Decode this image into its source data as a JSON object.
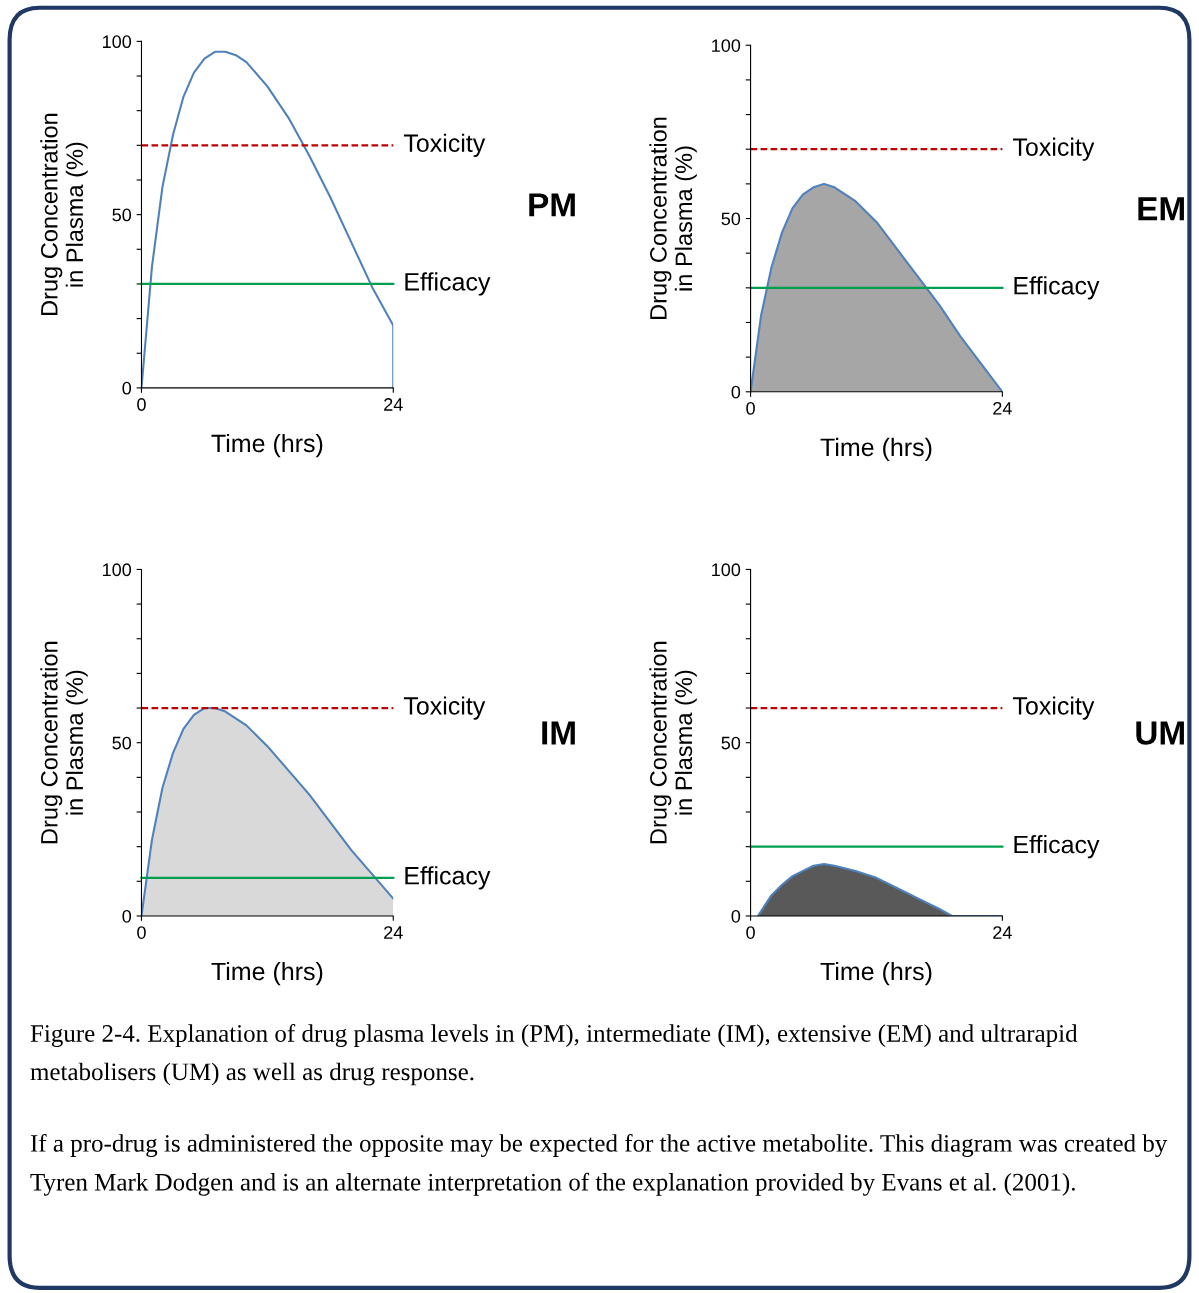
{
  "chart_data": [
    {
      "type": "line",
      "xlabel": "Time (hrs)",
      "ylabel": "Drug Concentration\nin Plasma (%)",
      "xlim": [
        0,
        24
      ],
      "ylim": [
        0,
        100
      ],
      "xticks": [
        0,
        24
      ],
      "yticks": [
        0,
        {
          "value": 10,
          "label": null
        },
        {
          "value": 20,
          "label": null
        },
        {
          "value": 30,
          "label": null
        },
        {
          "value": 40,
          "label": null
        },
        50,
        {
          "value": 60,
          "label": null
        },
        {
          "value": 70,
          "label": null
        },
        {
          "value": 80,
          "label": null
        },
        {
          "value": 90,
          "label": null
        },
        100
      ],
      "series": [
        {
          "color": "#4f81bd",
          "x": [
            0,
            1,
            2,
            3,
            4,
            5,
            6,
            7,
            8,
            9,
            10,
            12,
            14,
            16,
            18,
            20,
            22,
            24,
            24
          ],
          "values": [
            0,
            35,
            58,
            73,
            84,
            91,
            95,
            97,
            97,
            96,
            94,
            87,
            78,
            67,
            55,
            42,
            29,
            18,
            0
          ]
        }
      ],
      "ref_lines": [
        {
          "axis": "y",
          "value": 70,
          "label": "Toxicity",
          "color": "#c00000",
          "line_style": "dashed"
        },
        {
          "axis": "y",
          "value": 30,
          "label": "Efficacy",
          "color": "#00a050",
          "line_style": "solid"
        }
      ],
      "annotations": [
        "PM"
      ]
    },
    {
      "type": "area",
      "xlabel": "Time (hrs)",
      "ylabel": "Drug Concentration\nin Plasma (%)",
      "xlim": [
        0,
        24
      ],
      "ylim": [
        0,
        100
      ],
      "xticks": [
        0,
        24
      ],
      "yticks": [
        0,
        {
          "value": 10,
          "label": null
        },
        {
          "value": 20,
          "label": null
        },
        {
          "value": 30,
          "label": null
        },
        {
          "value": 40,
          "label": null
        },
        50,
        {
          "value": 60,
          "label": null
        },
        {
          "value": 70,
          "label": null
        },
        {
          "value": 80,
          "label": null
        },
        {
          "value": 90,
          "label": null
        },
        100
      ],
      "series": [
        {
          "color": "#a6a6a6",
          "x": [
            0,
            1,
            2,
            3,
            4,
            5,
            6,
            7,
            8,
            10,
            12,
            14,
            16,
            18,
            20,
            22,
            24
          ],
          "values": [
            0,
            22,
            36,
            46,
            53,
            57,
            59,
            60,
            59,
            55,
            49,
            41,
            33,
            25,
            16,
            8,
            0
          ]
        }
      ],
      "ref_lines": [
        {
          "axis": "y",
          "value": 70,
          "label": "Toxicity",
          "color": "#c00000",
          "line_style": "dashed"
        },
        {
          "axis": "y",
          "value": 30,
          "label": "Efficacy",
          "color": "#00a050",
          "line_style": "solid"
        }
      ],
      "annotations": [
        "EM"
      ]
    },
    {
      "type": "area",
      "xlabel": "Time (hrs)",
      "ylabel": "Drug Concentration\nin Plasma (%)",
      "xlim": [
        0,
        24
      ],
      "ylim": [
        0,
        100
      ],
      "xticks": [
        0,
        24
      ],
      "yticks": [
        0,
        {
          "value": 10,
          "label": null
        },
        {
          "value": 20,
          "label": null
        },
        {
          "value": 30,
          "label": null
        },
        {
          "value": 40,
          "label": null
        },
        50,
        {
          "value": 60,
          "label": null
        },
        {
          "value": 70,
          "label": null
        },
        {
          "value": 80,
          "label": null
        },
        {
          "value": 90,
          "label": null
        },
        100
      ],
      "series": [
        {
          "color": "#d9d9d9",
          "x": [
            0,
            1,
            2,
            3,
            4,
            5,
            6,
            7,
            8,
            10,
            12,
            14,
            16,
            18,
            20,
            22,
            24
          ],
          "values": [
            0,
            22,
            37,
            47,
            54,
            58,
            60,
            60,
            59,
            55,
            49,
            42,
            35,
            27,
            19,
            12,
            5
          ]
        }
      ],
      "ref_lines": [
        {
          "axis": "y",
          "value": 60,
          "label": "Toxicity",
          "color": "#c00000",
          "line_style": "dashed"
        },
        {
          "axis": "y",
          "value": 11,
          "label": "Efficacy",
          "color": "#00a050",
          "line_style": "solid"
        }
      ],
      "annotations": [
        "IM"
      ]
    },
    {
      "type": "area",
      "xlabel": "Time (hrs)",
      "ylabel": "Drug Concentration\nin Plasma (%)",
      "xlim": [
        0,
        24
      ],
      "ylim": [
        0,
        100
      ],
      "xticks": [
        0,
        24
      ],
      "yticks": [
        0,
        {
          "value": 10,
          "label": null
        },
        {
          "value": 20,
          "label": null
        },
        {
          "value": 30,
          "label": null
        },
        {
          "value": 40,
          "label": null
        },
        50,
        {
          "value": 60,
          "label": null
        },
        {
          "value": 70,
          "label": null
        },
        {
          "value": 80,
          "label": null
        },
        {
          "value": 90,
          "label": null
        },
        100
      ],
      "series": [
        {
          "color": "#595959",
          "x": [
            0.7,
            2,
            3,
            4,
            5,
            6,
            7,
            8,
            10,
            12,
            14,
            16,
            18,
            19.2,
            24
          ],
          "values": [
            0,
            6,
            9,
            11.5,
            13,
            14.5,
            15,
            14.5,
            13,
            11,
            8,
            5,
            2,
            0,
            0
          ]
        }
      ],
      "ref_lines": [
        {
          "axis": "y",
          "value": 60,
          "label": "Toxicity",
          "color": "#c00000",
          "line_style": "dashed"
        },
        {
          "axis": "y",
          "value": 20,
          "label": "Efficacy",
          "color": "#00a050",
          "line_style": "solid"
        }
      ],
      "annotations": [
        "UM",
        "Figure 2-4. Explanation of drug plasma levels in (PM), intermediate (IM), extensive (EM) and ultrarapid metabolisers (UM) as well as drug response.",
        "If a pro-drug is administered the opposite may be expected for the active metabolite. This diagram was created by Tyren Mark Dodgen and is an alternate interpretation of the explanation provided by Evans et al. (2001)."
      ]
    }
  ]
}
